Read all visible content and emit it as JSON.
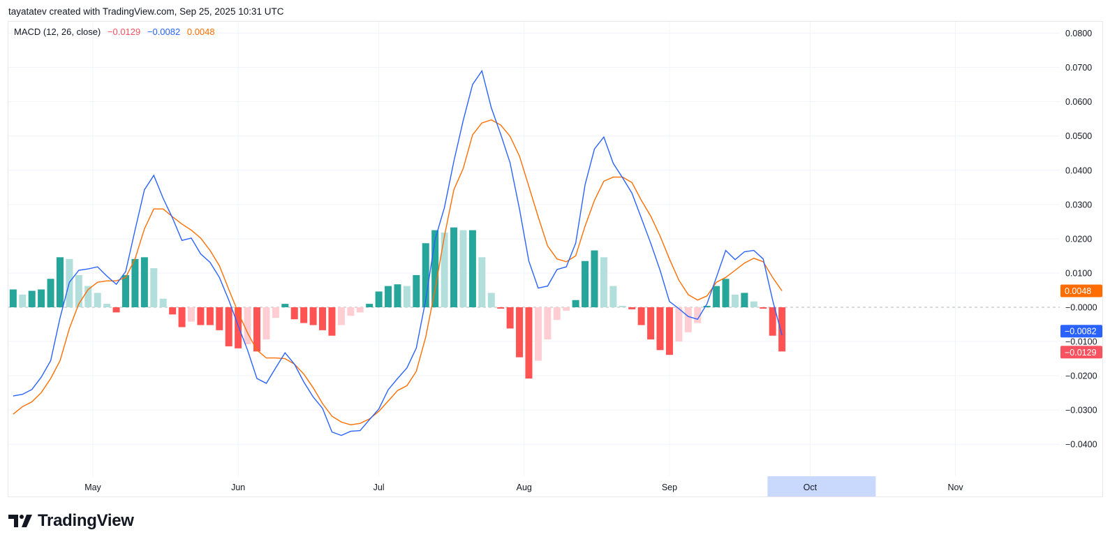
{
  "header": {
    "attribution": "tayatatev created with TradingView.com, Sep 25, 2025 10:31 UTC"
  },
  "legend": {
    "indicator": "MACD (12, 26, close)",
    "histogram_value": "−0.0129",
    "macd_value": "−0.0082",
    "signal_value": "0.0048"
  },
  "logo": {
    "text": "TradingView"
  },
  "colors": {
    "macd": "#2962ff",
    "signal": "#ff6d00",
    "hist_pos_rising": "#26a69a",
    "hist_pos_falling": "#b2dfdb",
    "hist_neg_falling": "#ff5252",
    "hist_neg_rising": "#ffcdd2",
    "highlight": "#c9d8fd"
  },
  "chart_data": {
    "type": "line+bar",
    "title": "MACD (12, 26, close)",
    "xlabel": "",
    "ylabel": "",
    "ylim": [
      -0.0455,
      0.0805
    ],
    "grid": true,
    "x_ticks": [
      "May",
      "Jun",
      "Jul",
      "Aug",
      "Sep",
      "Oct",
      "Nov"
    ],
    "x_highlight": "Oct",
    "y_ticks": [
      "0.0800",
      "0.0700",
      "0.0600",
      "0.0500",
      "0.0400",
      "0.0300",
      "0.0200",
      "0.0100",
      "−0.0000",
      "−0.0100",
      "−0.0200",
      "−0.0300",
      "−0.0400"
    ],
    "y_tick_values": [
      0.08,
      0.07,
      0.06,
      0.05,
      0.04,
      0.03,
      0.02,
      0.01,
      0,
      -0.01,
      -0.02,
      -0.03,
      -0.04
    ],
    "last_value_badges": [
      {
        "series": "signal",
        "label": "0.0048",
        "value": 0.0048
      },
      {
        "series": "macd",
        "label": "−0.0082",
        "value": -0.0082
      },
      {
        "series": "histogram",
        "label": "−0.0129",
        "value": -0.0129
      }
    ],
    "x": [
      "Apr 14",
      "Apr 16",
      "Apr 18",
      "Apr 20",
      "Apr 22",
      "Apr 24",
      "Apr 26",
      "Apr 28",
      "Apr 30",
      "May 2",
      "May 4",
      "May 6",
      "May 8",
      "May 10",
      "May 12",
      "May 14",
      "May 16",
      "May 18",
      "May 20",
      "May 22",
      "May 24",
      "May 26",
      "May 28",
      "May 30",
      "Jun 1",
      "Jun 3",
      "Jun 5",
      "Jun 7",
      "Jun 9",
      "Jun 11",
      "Jun 13",
      "Jun 15",
      "Jun 17",
      "Jun 19",
      "Jun 21",
      "Jun 23",
      "Jun 25",
      "Jun 27",
      "Jun 29",
      "Jul 1",
      "Jul 3",
      "Jul 5",
      "Jul 7",
      "Jul 9",
      "Jul 11",
      "Jul 13",
      "Jul 15",
      "Jul 17",
      "Jul 19",
      "Jul 21",
      "Jul 23",
      "Jul 25",
      "Jul 27",
      "Jul 29",
      "Jul 31",
      "Aug 2",
      "Aug 4",
      "Aug 6",
      "Aug 8",
      "Aug 10",
      "Aug 12",
      "Aug 14",
      "Aug 16",
      "Aug 18",
      "Aug 20",
      "Aug 22",
      "Aug 24",
      "Aug 26",
      "Aug 28",
      "Aug 30",
      "Sep 1",
      "Sep 3",
      "Sep 5",
      "Sep 7",
      "Sep 9",
      "Sep 11",
      "Sep 13",
      "Sep 15",
      "Sep 17",
      "Sep 19",
      "Sep 21",
      "Sep 23",
      "Sep 25"
    ],
    "series": [
      {
        "name": "MACD",
        "kind": "line",
        "color": "#2962ff",
        "values": [
          -0.0259,
          -0.0254,
          -0.024,
          -0.0204,
          -0.0156,
          -0.0031,
          0.0073,
          0.0108,
          0.0112,
          0.0118,
          0.0091,
          0.0067,
          0.0104,
          0.0225,
          0.0343,
          0.0385,
          0.0318,
          0.026,
          0.0195,
          0.0202,
          0.0156,
          0.0131,
          0.0087,
          0.0021,
          -0.0054,
          -0.0125,
          -0.0208,
          -0.0222,
          -0.0177,
          -0.0133,
          -0.0166,
          -0.0218,
          -0.0262,
          -0.0295,
          -0.0364,
          -0.0374,
          -0.0362,
          -0.036,
          -0.0328,
          -0.0297,
          -0.0241,
          -0.0208,
          -0.0177,
          -0.0119,
          0.0021,
          0.0198,
          0.0291,
          0.0426,
          0.0545,
          0.065,
          0.069,
          0.0582,
          0.0505,
          0.0422,
          0.0287,
          0.0135,
          0.0056,
          0.0062,
          0.011,
          0.0118,
          0.0187,
          0.0358,
          0.0462,
          0.0497,
          0.042,
          0.0378,
          0.0333,
          0.026,
          0.0187,
          0.0108,
          0.0017,
          -0.0004,
          -0.0027,
          -0.0035,
          0.001,
          0.0087,
          0.0166,
          0.0139,
          0.0162,
          0.0166,
          0.0141,
          0.0021,
          -0.0082
        ]
      },
      {
        "name": "Signal",
        "kind": "line",
        "color": "#ff6d00",
        "values": [
          -0.0312,
          -0.029,
          -0.0276,
          -0.0249,
          -0.0208,
          -0.0156,
          -0.0062,
          0.001,
          0.0052,
          0.0073,
          0.0077,
          0.0077,
          0.0087,
          0.0141,
          0.0229,
          0.0287,
          0.0287,
          0.0264,
          0.0243,
          0.0225,
          0.0202,
          0.0166,
          0.0121,
          0.0052,
          -0.0015,
          -0.0075,
          -0.0125,
          -0.0148,
          -0.0148,
          -0.015,
          -0.0166,
          -0.0195,
          -0.0235,
          -0.0281,
          -0.0318,
          -0.0335,
          -0.0343,
          -0.0339,
          -0.0326,
          -0.0304,
          -0.0274,
          -0.0243,
          -0.0229,
          -0.0187,
          -0.0087,
          0.0052,
          0.0208,
          0.0343,
          0.0405,
          0.0503,
          0.0538,
          0.0547,
          0.0532,
          0.0499,
          0.0441,
          0.0353,
          0.0264,
          0.0179,
          0.0141,
          0.0133,
          0.015,
          0.0237,
          0.0312,
          0.0368,
          0.038,
          0.038,
          0.0364,
          0.0312,
          0.0266,
          0.0208,
          0.0141,
          0.0079,
          0.0037,
          0.0021,
          0.0033,
          0.0073,
          0.0087,
          0.0108,
          0.0129,
          0.0143,
          0.0133,
          0.0087,
          0.0048
        ]
      },
      {
        "name": "Histogram",
        "kind": "bar",
        "values": [
          0.0052,
          0.0037,
          0.0048,
          0.0052,
          0.0083,
          0.0146,
          0.0141,
          0.0094,
          0.0062,
          0.0042,
          0.001,
          -0.0015,
          0.0094,
          0.0141,
          0.0146,
          0.0114,
          0.0025,
          -0.0021,
          -0.0058,
          -0.0042,
          -0.0052,
          -0.0052,
          -0.0067,
          -0.0114,
          -0.012,
          -0.0108,
          -0.0129,
          -0.0094,
          -0.0031,
          0.001,
          -0.0035,
          -0.0046,
          -0.0052,
          -0.0067,
          -0.0083,
          -0.0052,
          -0.0025,
          -0.0015,
          0.001,
          0.0046,
          0.0062,
          0.0067,
          0.0062,
          0.0094,
          0.0187,
          0.0225,
          0.0218,
          0.0233,
          0.0225,
          0.0225,
          0.0146,
          0.0042,
          -0.0004,
          -0.0062,
          -0.0146,
          -0.0208,
          -0.0156,
          -0.0094,
          -0.0037,
          -0.001,
          0.0021,
          0.0135,
          0.0166,
          0.0146,
          0.0062,
          0.0004,
          -0.0006,
          -0.0052,
          -0.0094,
          -0.0125,
          -0.0139,
          -0.01,
          -0.0073,
          -0.0046,
          0.0004,
          0.0062,
          0.0083,
          0.0037,
          0.0042,
          0.0017,
          -0.0004,
          -0.0083,
          -0.0129
        ]
      }
    ]
  }
}
